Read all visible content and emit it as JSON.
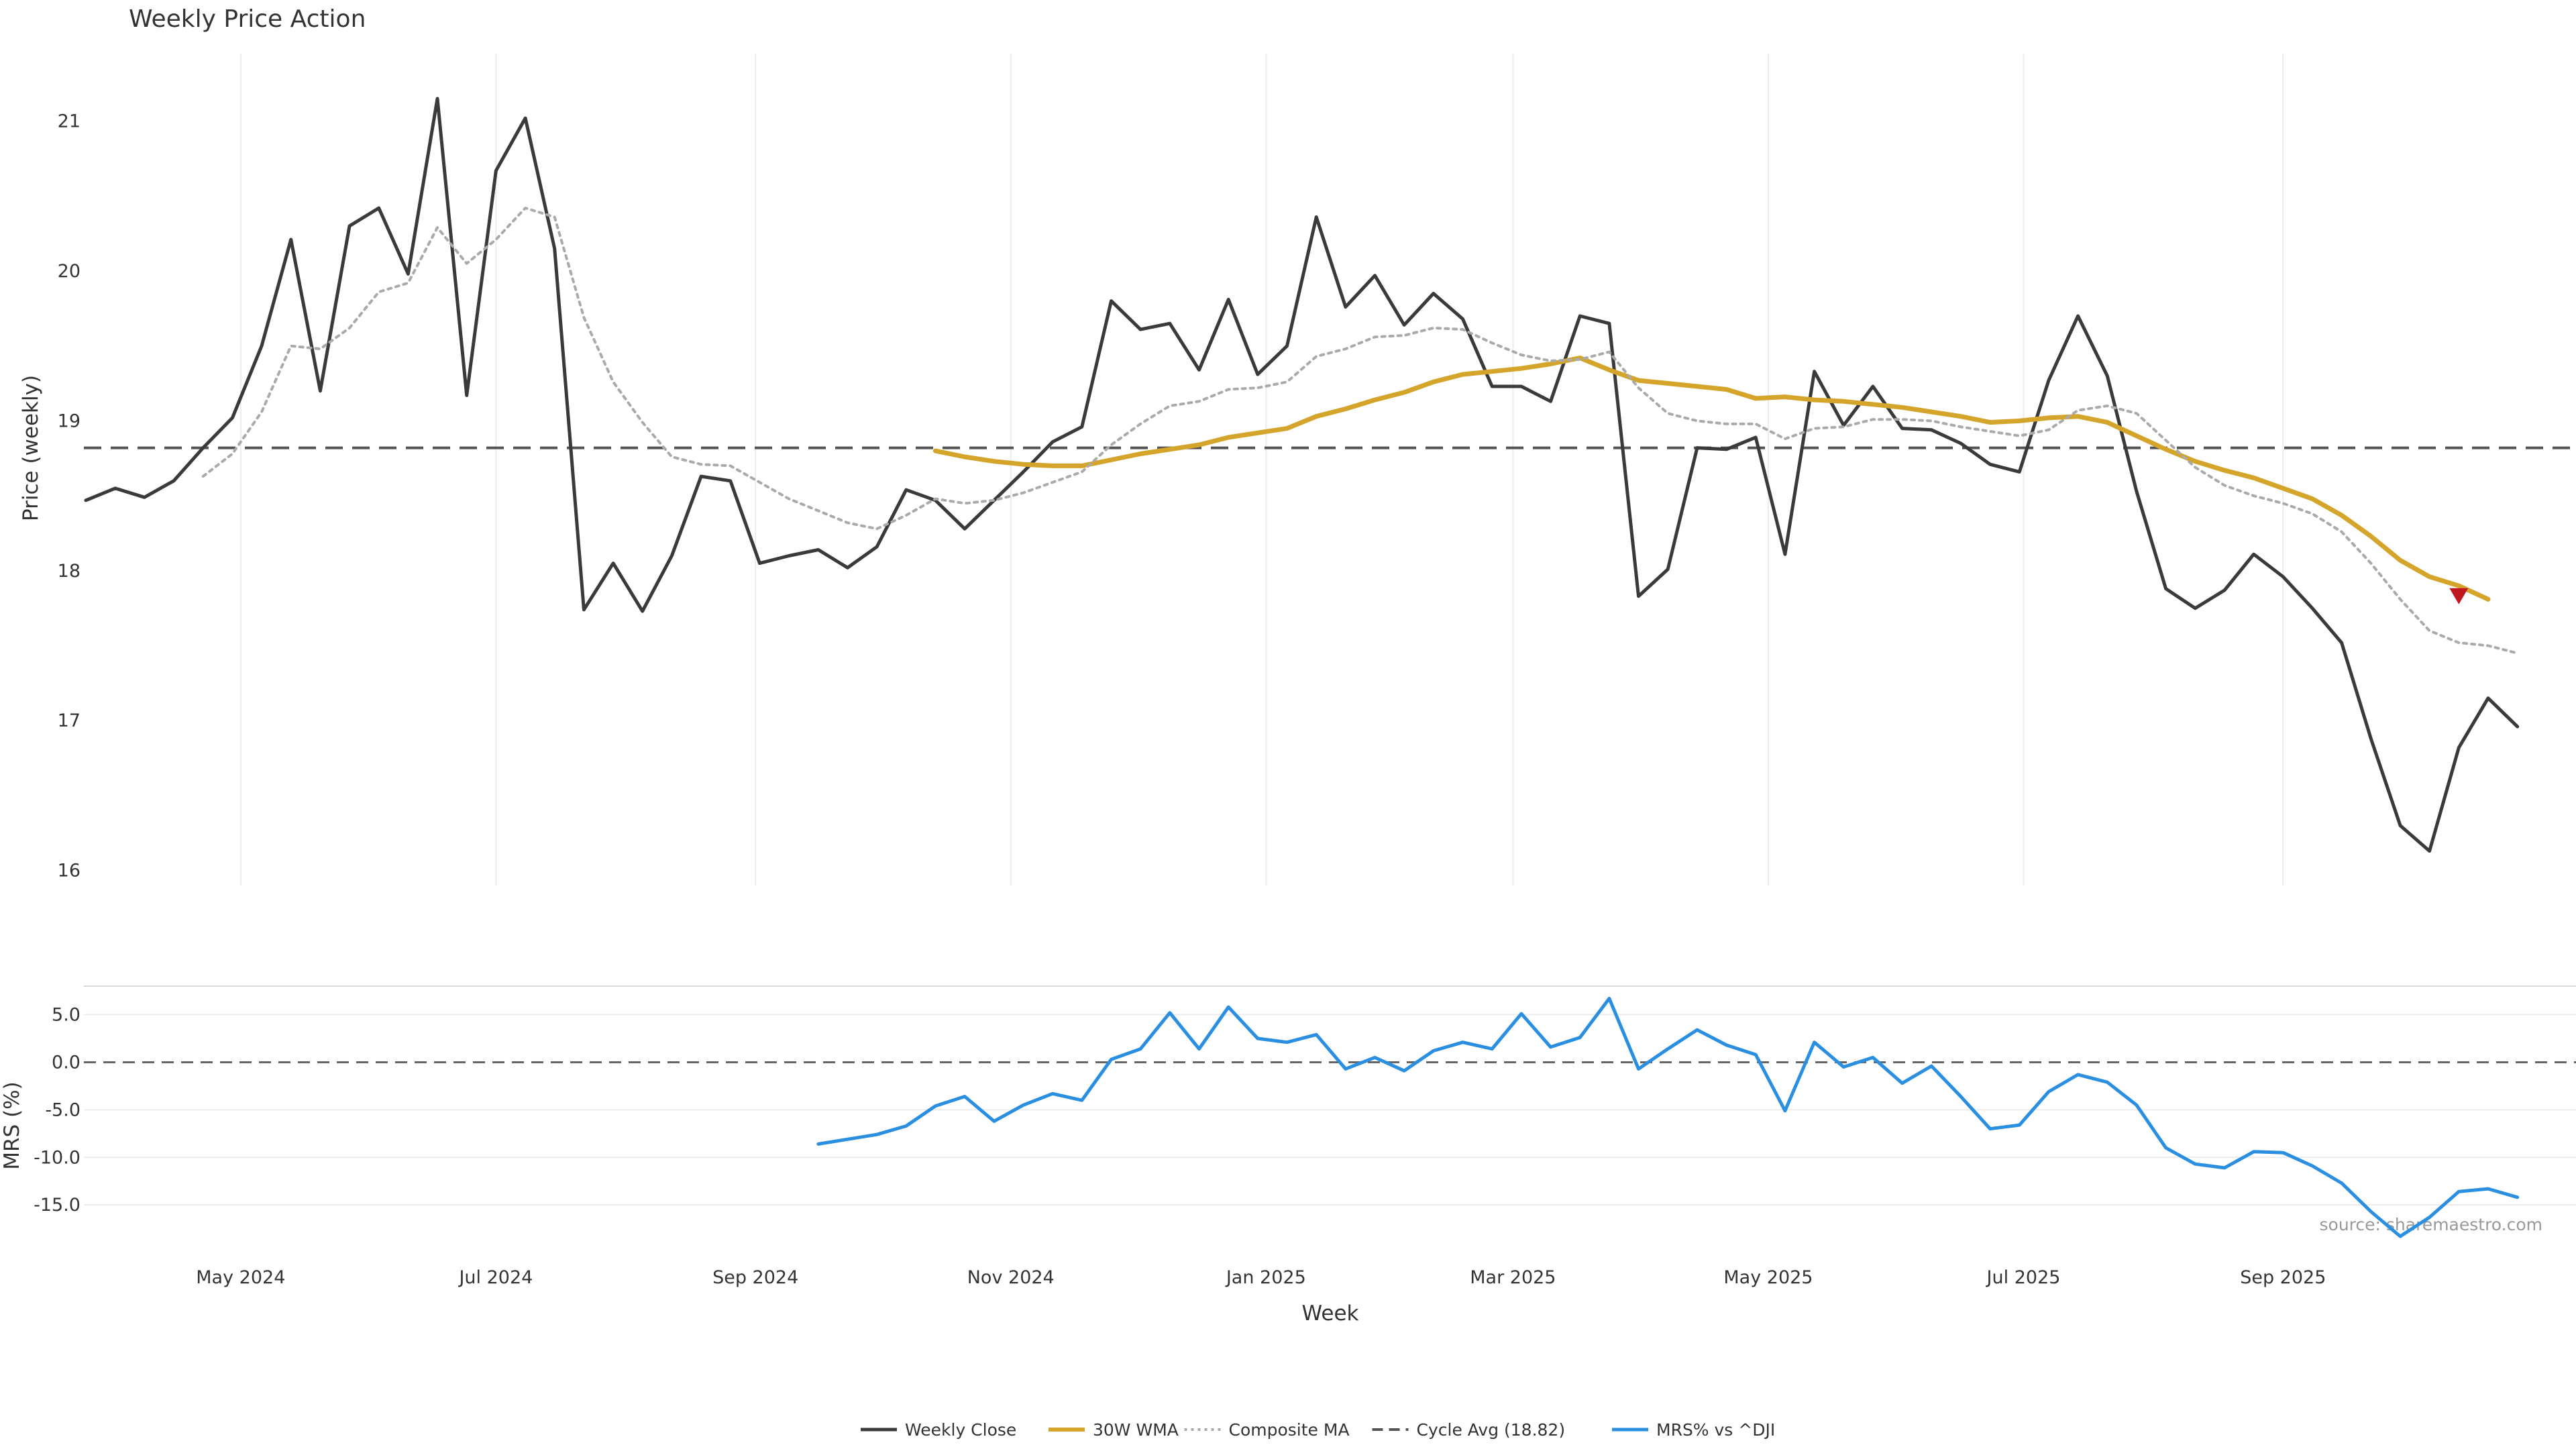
{
  "chart_data": {
    "type": "line",
    "title": "Weekly Price Action",
    "xlabel": "Week",
    "x_tick_labels": [
      "May 2024",
      "Jul 2024",
      "Sep 2024",
      "Nov 2024",
      "Jan 2025",
      "Mar 2025",
      "May 2025",
      "Jul 2025",
      "Sep 2025"
    ],
    "x_tick_dates": [
      "2024-05-01",
      "2024-07-01",
      "2024-09-01",
      "2024-11-01",
      "2025-01-01",
      "2025-03-01",
      "2025-05-01",
      "2025-07-01",
      "2025-09-01"
    ],
    "x_range": [
      "2024-03-25",
      "2025-11-10"
    ],
    "price_panel": {
      "ylabel": "Price (weekly)",
      "ylim": [
        15.9,
        21.45
      ],
      "y_ticks": [
        "16",
        "17",
        "18",
        "19",
        "20",
        "21"
      ],
      "cycle_avg": 18.82,
      "grid": "vertical"
    },
    "mrs_panel": {
      "ylabel": "MRS (%)",
      "ylim": [
        -19.5,
        8.0
      ],
      "y_ticks": [
        "5.0",
        "0.0",
        "-5.0",
        "-10.0",
        "-15.0"
      ],
      "zero_line": 0,
      "grid": "horizontal"
    },
    "series": [
      {
        "name": "Weekly Close",
        "panel": "price",
        "color": "#3a3a3a",
        "style": "solid",
        "start": "2024-03-25",
        "values": [
          18.47,
          18.55,
          18.49,
          18.6,
          18.82,
          19.02,
          19.5,
          20.21,
          19.2,
          20.3,
          20.42,
          19.98,
          21.15,
          19.17,
          20.67,
          21.02,
          20.15,
          17.74,
          18.05,
          17.73,
          18.1,
          18.63,
          18.6,
          18.05,
          18.1,
          18.14,
          18.02,
          18.16,
          18.54,
          18.47,
          18.28,
          18.47,
          18.66,
          18.86,
          18.96,
          19.8,
          19.61,
          19.65,
          19.34,
          19.81,
          19.31,
          19.5,
          20.36,
          19.76,
          19.97,
          19.64,
          19.85,
          19.68,
          19.23,
          19.23,
          19.13,
          19.7,
          19.65,
          17.83,
          18.01,
          18.82,
          18.81,
          18.89,
          18.11,
          19.33,
          18.97,
          19.23,
          18.95,
          18.94,
          18.85,
          18.71,
          18.66,
          19.27,
          19.7,
          19.3,
          18.53,
          17.88,
          17.75,
          17.87,
          18.11,
          17.96,
          17.75,
          17.52,
          16.88,
          16.3,
          16.13,
          16.82,
          17.15,
          16.96
        ]
      },
      {
        "name": "30W WMA",
        "panel": "price",
        "color": "#d4a52a",
        "style": "solid",
        "start": "2024-10-14",
        "values": [
          18.8,
          18.76,
          18.73,
          18.71,
          18.7,
          18.7,
          18.74,
          18.78,
          18.81,
          18.84,
          18.89,
          18.92,
          18.95,
          19.03,
          19.08,
          19.14,
          19.19,
          19.26,
          19.31,
          19.33,
          19.35,
          19.38,
          19.42,
          19.34,
          19.27,
          19.25,
          19.23,
          19.21,
          19.15,
          19.16,
          19.14,
          19.13,
          19.11,
          19.09,
          19.06,
          19.03,
          18.99,
          19.0,
          19.02,
          19.03,
          18.99,
          18.9,
          18.81,
          18.73,
          18.67,
          18.62,
          18.55,
          18.48,
          18.37,
          18.23,
          18.07,
          17.96,
          17.9,
          17.81
        ]
      },
      {
        "name": "Composite MA",
        "panel": "price",
        "color": "#aaaaaa",
        "style": "dotted",
        "start": "2024-04-22",
        "values": [
          18.63,
          18.78,
          19.06,
          19.5,
          19.48,
          19.62,
          19.86,
          19.92,
          20.29,
          20.05,
          20.21,
          20.42,
          20.36,
          19.69,
          19.26,
          18.99,
          18.76,
          18.71,
          18.7,
          18.59,
          18.48,
          18.4,
          18.32,
          18.28,
          18.37,
          18.48,
          18.45,
          18.47,
          18.52,
          18.59,
          18.66,
          18.84,
          18.98,
          19.1,
          19.13,
          19.21,
          19.22,
          19.26,
          19.43,
          19.48,
          19.56,
          19.57,
          19.62,
          19.61,
          19.52,
          19.44,
          19.4,
          19.41,
          19.46,
          19.22,
          19.05,
          19.0,
          18.98,
          18.98,
          18.88,
          18.95,
          18.96,
          19.01,
          19.01,
          19.0,
          18.96,
          18.93,
          18.9,
          18.94,
          19.07,
          19.1,
          19.05,
          18.87,
          18.69,
          18.57,
          18.5,
          18.45,
          18.38,
          18.26,
          18.05,
          17.81,
          17.6,
          17.52,
          17.5,
          17.45
        ]
      },
      {
        "name": "Cycle Avg (18.82)",
        "panel": "price",
        "color": "#555555",
        "style": "dashed"
      },
      {
        "name": "MRS% vs ^DJI",
        "panel": "mrs",
        "color": "#2a8fe0",
        "style": "solid",
        "start": "2024-09-16",
        "values": [
          -8.6,
          -8.1,
          -7.6,
          -6.7,
          -4.6,
          -3.6,
          -6.2,
          -4.5,
          -3.3,
          -4.0,
          0.3,
          1.4,
          5.2,
          1.4,
          5.8,
          2.5,
          2.1,
          2.9,
          -0.7,
          0.5,
          -0.9,
          1.2,
          2.1,
          1.4,
          5.1,
          1.6,
          2.6,
          6.7,
          -0.7,
          1.4,
          3.4,
          1.8,
          0.8,
          -5.1,
          2.1,
          -0.5,
          0.5,
          -2.2,
          -0.4,
          -3.6,
          -7.0,
          -6.6,
          -3.1,
          -1.3,
          -2.1,
          -4.5,
          -9.0,
          -10.7,
          -11.1,
          -9.4,
          -9.5,
          -10.9,
          -12.7,
          -15.7,
          -18.3,
          -16.3,
          -13.6,
          -13.3,
          -14.2
        ]
      }
    ],
    "markers": [
      {
        "type": "down-triangle",
        "color": "#c0161e",
        "date": "2025-10-13",
        "value": 17.83
      }
    ],
    "legend": {
      "position": "bottom-center",
      "items": [
        "Weekly Close",
        "30W WMA",
        "Composite MA",
        "Cycle Avg (18.82)",
        "MRS% vs ^DJI"
      ]
    },
    "source_note": "source: sharemaestro.com"
  }
}
